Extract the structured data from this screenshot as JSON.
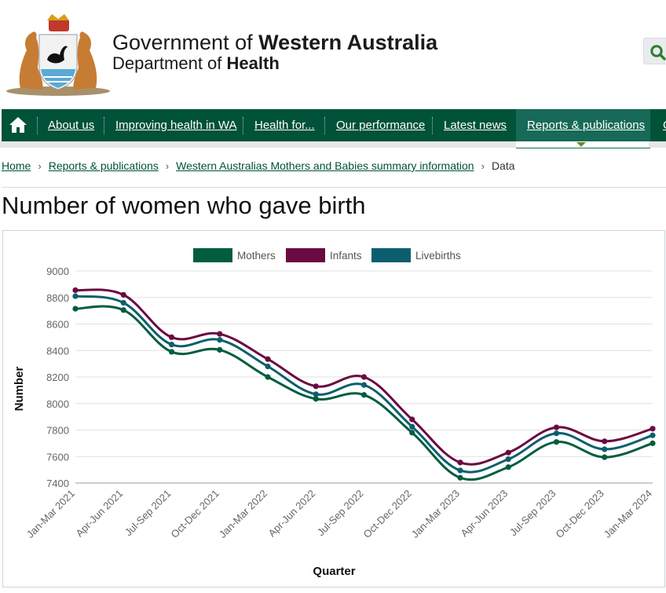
{
  "header": {
    "gov_prefix": "Government of ",
    "gov_bold": "Western Australia",
    "dept_prefix": "Department of ",
    "dept_bold": "Health"
  },
  "nav": {
    "items": [
      {
        "label": "About us"
      },
      {
        "label": "Improving health in WA"
      },
      {
        "label": "Health for..."
      },
      {
        "label": "Our performance"
      },
      {
        "label": "Latest news"
      },
      {
        "label": "Reports & publications"
      },
      {
        "label": "C"
      }
    ],
    "active_index": 5
  },
  "breadcrumb": {
    "items": [
      "Home",
      "Reports & publications",
      "Western Australias Mothers and Babies summary information"
    ],
    "current": "Data"
  },
  "page_title": "Number of women who gave birth",
  "colors": {
    "brand_green": "#005238",
    "mothers": "#005d3f",
    "infants": "#6b0a42",
    "livebirths": "#0c5e6e"
  },
  "chart_data": {
    "type": "line",
    "title": "",
    "xlabel": "Quarter",
    "ylabel": "Number",
    "ylim": [
      7400,
      9000
    ],
    "yticks": [
      7400,
      7600,
      7800,
      8000,
      8200,
      8400,
      8600,
      8800,
      9000
    ],
    "grid": true,
    "legend_position": "top-center",
    "categories": [
      "Jan-Mar 2021",
      "Apr-Jun 2021",
      "Jul-Sep 2021",
      "Oct-Dec 2021",
      "Jan-Mar 2022",
      "Apr-Jun 2022",
      "Jul-Sep 2022",
      "Oct-Dec 2022",
      "Jan-Mar 2023",
      "Apr-Jun 2023",
      "Jul-Sep 2023",
      "Oct-Dec 2023",
      "Jan-Mar 2024"
    ],
    "series": [
      {
        "name": "Mothers",
        "color": "#005d3f",
        "values": [
          8715,
          8705,
          8390,
          8405,
          8200,
          8035,
          8065,
          7780,
          7440,
          7520,
          7710,
          7595,
          7700
        ]
      },
      {
        "name": "Infants",
        "color": "#6b0a42",
        "values": [
          8855,
          8820,
          8500,
          8525,
          8335,
          8130,
          8200,
          7880,
          7555,
          7630,
          7820,
          7715,
          7810
        ]
      },
      {
        "name": "Livebirths",
        "color": "#0c5e6e",
        "values": [
          8810,
          8760,
          8445,
          8480,
          8280,
          8070,
          8140,
          7825,
          7495,
          7580,
          7775,
          7655,
          7760
        ]
      }
    ]
  }
}
